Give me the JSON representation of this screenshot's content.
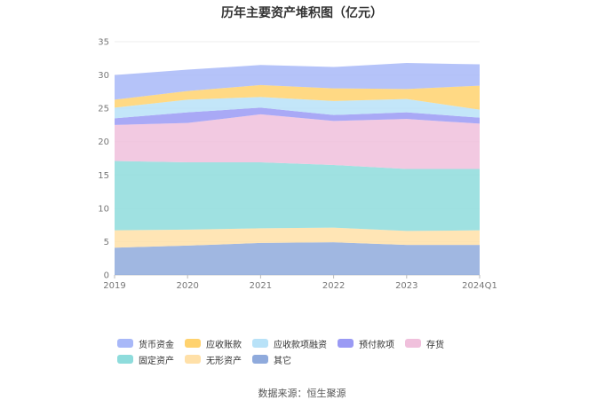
{
  "title": "历年主要资产堆积图（亿元）",
  "source": "数据来源：恒生聚源",
  "chart_data": {
    "type": "area",
    "stacked": true,
    "title": "历年主要资产堆积图（亿元）",
    "xlabel": "",
    "ylabel": "",
    "categories": [
      "2019",
      "2020",
      "2021",
      "2022",
      "2023",
      "2024Q1"
    ],
    "ylim": [
      0,
      35
    ],
    "yticks": [
      0,
      5,
      10,
      15,
      20,
      25,
      30,
      35
    ],
    "grid": true,
    "legend_position": "bottom",
    "series": [
      {
        "name": "其它",
        "color": "#8FAADC",
        "values": [
          4.1,
          4.4,
          4.8,
          4.9,
          4.5,
          4.5
        ]
      },
      {
        "name": "无形资产",
        "color": "#FFE0A8",
        "values": [
          2.6,
          2.4,
          2.2,
          2.2,
          2.1,
          2.2
        ]
      },
      {
        "name": "固定资产",
        "color": "#8EDCDC",
        "values": [
          10.4,
          10.1,
          9.9,
          9.4,
          9.3,
          9.2
        ]
      },
      {
        "name": "存货",
        "color": "#F0C0DC",
        "values": [
          5.4,
          5.9,
          7.2,
          6.6,
          7.5,
          6.8
        ]
      },
      {
        "name": "预付款项",
        "color": "#9A9AF4",
        "values": [
          1.0,
          1.6,
          1.0,
          0.9,
          1.0,
          0.9
        ]
      },
      {
        "name": "应收款项融资",
        "color": "#B8E2F8",
        "values": [
          1.6,
          1.9,
          1.6,
          2.1,
          2.0,
          1.2
        ]
      },
      {
        "name": "应收账款",
        "color": "#FFD26E",
        "values": [
          1.2,
          1.3,
          1.8,
          1.9,
          1.5,
          3.6
        ]
      },
      {
        "name": "货币资金",
        "color": "#A8B8F8",
        "values": [
          3.7,
          3.2,
          3.0,
          3.2,
          3.9,
          3.2
        ]
      }
    ],
    "legend_order": [
      "货币资金",
      "应收账款",
      "应收款项融资",
      "预付款项",
      "存货",
      "固定资产",
      "无形资产",
      "其它"
    ]
  }
}
